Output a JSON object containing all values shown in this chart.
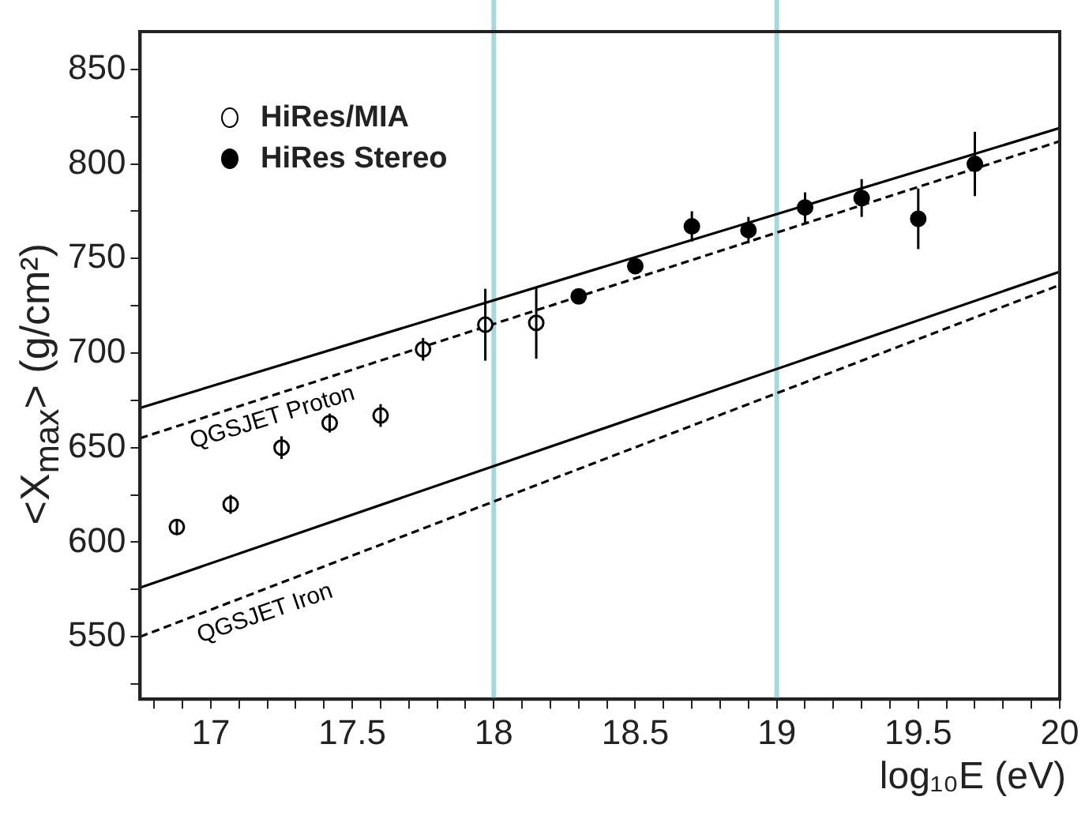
{
  "chart_data": {
    "type": "scatter",
    "xlabel": "log₁₀E (eV)",
    "ylabel": "<X$_{max}$> (g/cm²)",
    "xlim": [
      16.75,
      20
    ],
    "ylim": [
      517,
      870
    ],
    "xticks": [
      {
        "value": 16.8,
        "label": null
      },
      {
        "value": 16.9,
        "label": null
      },
      17,
      {
        "value": 17.1,
        "label": null
      },
      {
        "value": 17.2,
        "label": null
      },
      {
        "value": 17.3,
        "label": null
      },
      {
        "value": 17.4,
        "label": null
      },
      17.5,
      {
        "value": 17.6,
        "label": null
      },
      {
        "value": 17.7,
        "label": null
      },
      {
        "value": 17.8,
        "label": null
      },
      {
        "value": 17.9,
        "label": null
      },
      18,
      {
        "value": 18.1,
        "label": null
      },
      {
        "value": 18.2,
        "label": null
      },
      {
        "value": 18.3,
        "label": null
      },
      {
        "value": 18.4,
        "label": null
      },
      18.5,
      {
        "value": 18.6,
        "label": null
      },
      {
        "value": 18.7,
        "label": null
      },
      {
        "value": 18.8,
        "label": null
      },
      {
        "value": 18.9,
        "label": null
      },
      19,
      {
        "value": 19.1,
        "label": null
      },
      {
        "value": 19.2,
        "label": null
      },
      {
        "value": 19.3,
        "label": null
      },
      {
        "value": 19.4,
        "label": null
      },
      19.5,
      {
        "value": 19.6,
        "label": null
      },
      {
        "value": 19.7,
        "label": null
      },
      {
        "value": 19.8,
        "label": null
      },
      {
        "value": 19.9,
        "label": null
      },
      20
    ],
    "yticks": [
      {
        "value": 525,
        "label": null
      },
      550,
      {
        "value": 575,
        "label": null
      },
      600,
      {
        "value": 625,
        "label": null
      },
      650,
      {
        "value": 675,
        "label": null
      },
      700,
      {
        "value": 725,
        "label": null
      },
      750,
      {
        "value": 775,
        "label": null
      },
      800,
      {
        "value": 825,
        "label": null
      },
      850
    ],
    "grid": false,
    "legend": "top left",
    "marker": "circle",
    "ref_lines": [
      {
        "axis": "x",
        "value": 18,
        "color": "#a8d8dc"
      },
      {
        "axis": "x",
        "value": 19,
        "color": "#a8d8dc"
      }
    ],
    "series": [
      {
        "name": "HiRes/MIA",
        "color": "#000000",
        "x": [
          16.88,
          17.07,
          17.25,
          17.42,
          17.6,
          17.75,
          17.97,
          18.15
        ],
        "values": [
          608,
          620,
          650,
          663,
          667,
          702,
          715,
          716
        ],
        "errors": [
          4,
          5,
          6,
          5,
          6,
          6,
          19,
          19
        ]
      },
      {
        "name": "HiRes Stereo",
        "color": "#000000",
        "x": [
          18.3,
          18.5,
          18.7,
          18.9,
          19.1,
          19.3,
          19.5,
          19.7
        ],
        "values": [
          730,
          746,
          767,
          765,
          777,
          782,
          771,
          800
        ],
        "errors": [
          3,
          4,
          8,
          7,
          8,
          10,
          16,
          17
        ]
      },
      {
        "type": "line",
        "name": "QGSJET Proton",
        "color": "#000000",
        "x": [
          16.75,
          20
        ],
        "values": [
          671,
          819
        ],
        "marker": "none",
        "line_style": "solid"
      },
      {
        "type": "line",
        "color": "#000000",
        "x": [
          16.75,
          20
        ],
        "values": [
          655,
          812
        ],
        "marker": "none",
        "line_style": "dashed"
      },
      {
        "type": "line",
        "name": "QGSJET Iron",
        "color": "#000000",
        "x": [
          16.75,
          20
        ],
        "values": [
          576,
          743
        ],
        "marker": "none",
        "line_style": "solid"
      },
      {
        "type": "line",
        "color": "#000000",
        "x": [
          16.75,
          20
        ],
        "values": [
          550,
          736
        ],
        "marker": "none",
        "line_style": "dashed"
      }
    ]
  }
}
